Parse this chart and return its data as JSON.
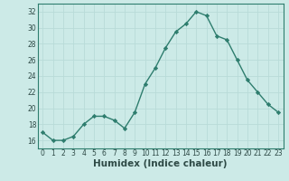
{
  "x": [
    0,
    1,
    2,
    3,
    4,
    5,
    6,
    7,
    8,
    9,
    10,
    11,
    12,
    13,
    14,
    15,
    16,
    17,
    18,
    19,
    20,
    21,
    22,
    23
  ],
  "y": [
    17.0,
    16.0,
    16.0,
    16.5,
    18.0,
    19.0,
    19.0,
    18.5,
    17.5,
    19.5,
    23.0,
    25.0,
    27.5,
    29.5,
    30.5,
    32.0,
    31.5,
    29.0,
    28.5,
    26.0,
    23.5,
    22.0,
    20.5,
    19.5
  ],
  "line_color": "#2e7d6e",
  "marker": "D",
  "markersize": 2.2,
  "linewidth": 1.0,
  "xlabel": "Humidex (Indice chaleur)",
  "xlim": [
    -0.5,
    23.5
  ],
  "ylim": [
    15,
    33
  ],
  "yticks": [
    16,
    18,
    20,
    22,
    24,
    26,
    28,
    30,
    32
  ],
  "xticks": [
    0,
    1,
    2,
    3,
    4,
    5,
    6,
    7,
    8,
    9,
    10,
    11,
    12,
    13,
    14,
    15,
    16,
    17,
    18,
    19,
    20,
    21,
    22,
    23
  ],
  "bg_color": "#cceae7",
  "grid_color": "#b8dbd8",
  "tick_fontsize": 5.5,
  "xlabel_fontsize": 7.5,
  "spine_color": "#2e7d6e",
  "tick_color": "#2e4a46"
}
